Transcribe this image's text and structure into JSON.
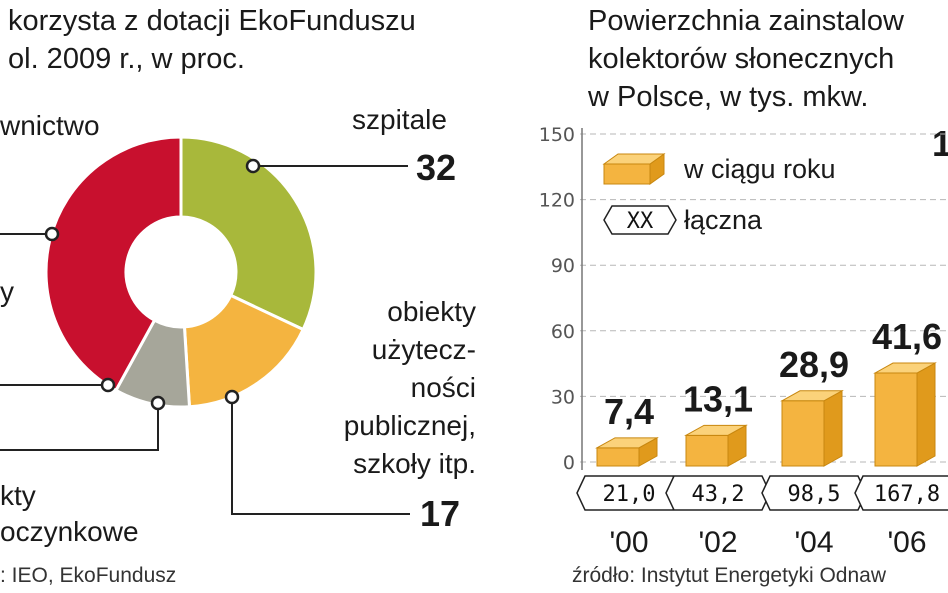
{
  "left": {
    "title_line1": "korzysta z dotacji EkoFunduszu",
    "title_line2": "ol. 2009 r., w proc.",
    "labels": {
      "budownictwo": "wnictwo",
      "cut_y": "y",
      "szpitale": "szpitale",
      "szpitale_value": "32",
      "obiekty_lines": [
        "obiekty",
        "użytecz-",
        "ności",
        "publicznej,",
        "szkoły itp."
      ],
      "obiekty_value": "17",
      "bottom_line1": "kty",
      "bottom_line2": "oczynkowe"
    },
    "source": ": IEO, EkoFundusz",
    "chart_data": {
      "type": "pie",
      "donut": true,
      "slices": [
        {
          "label": "szpitale",
          "value": 32,
          "color": "#a8b83b"
        },
        {
          "label": "obiekty użyteczności publicznej, szkoły itp.",
          "value": 17,
          "color": "#f4b440"
        },
        {
          "label": "obiekty wypoczynkowe",
          "value": 9,
          "color": "#a6a69a"
        },
        {
          "label": "budownictwo",
          "value": 42,
          "color": "#c8102e"
        }
      ]
    }
  },
  "right": {
    "title_line1": "Powierzchnia zainstalow",
    "title_line2": "kolektorów słonecznych",
    "title_line3": "w Polsce, w tys. mkw.",
    "legend": {
      "annual": "w ciągu roku",
      "cumulative_box": "XX",
      "cumulative": "łączna"
    },
    "source": "źródło: Instytut Energetyki Odnaw",
    "cut_top_value": "1",
    "chart_data": {
      "type": "bar",
      "categories": [
        "'00",
        "'02",
        "'04",
        "'06"
      ],
      "series": [
        {
          "name": "w ciągu roku",
          "values": [
            7.4,
            13.1,
            28.9,
            41.6
          ],
          "value_labels": [
            "7,4",
            "13,1",
            "28,9",
            "41,6"
          ]
        },
        {
          "name": "łączna",
          "values": [
            21.0,
            43.2,
            98.5,
            167.8
          ],
          "value_labels": [
            "21,0",
            "43,2",
            "98,5",
            "167,8"
          ]
        }
      ],
      "ylim": [
        0,
        150
      ],
      "yticks": [
        0,
        30,
        60,
        90,
        120,
        150
      ],
      "grid": true,
      "bar_color": "#f4b440"
    }
  }
}
